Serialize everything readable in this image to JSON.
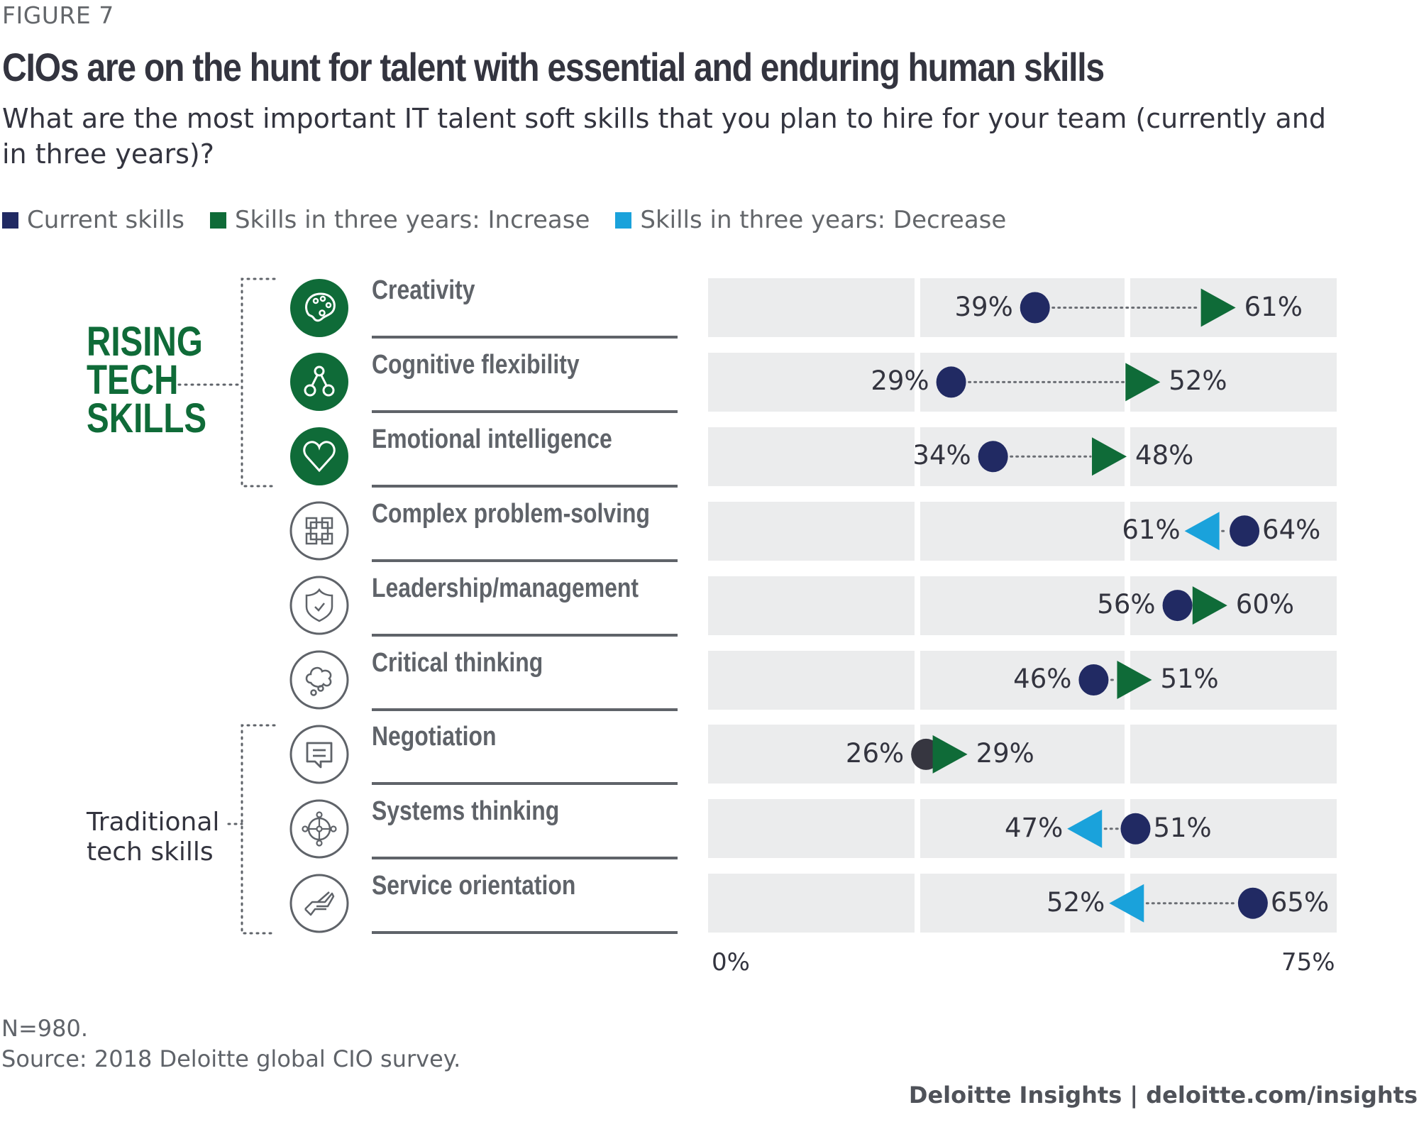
{
  "figure_label": "FIGURE 7",
  "title": "CIOs are on the hunt for talent with essential and enduring human skills",
  "subtitle": "What are the most important IT talent soft skills that you plan to hire for your team (currently and in three years)?",
  "legend": [
    {
      "label": "Current skills",
      "color": "#212a63"
    },
    {
      "label": "Skills in three years: Increase",
      "color": "#0f6b38"
    },
    {
      "label": "Skills in three years: Decrease",
      "color": "#1aa2db"
    }
  ],
  "groups": {
    "rising": "RISING\nTECH\nSKILLS",
    "traditional": "Traditional\ntech skills"
  },
  "colors": {
    "current": "#212a63",
    "increase": "#0f6b38",
    "decrease": "#1aa2db",
    "rising_icon_bg": "#0f6b38",
    "traditional_icon_stroke": "#5f6369",
    "negotiation_current": "#363640"
  },
  "chart_data": {
    "type": "dot-arrow",
    "title": "CIOs are on the hunt for talent with essential and enduring human skills",
    "xlabel": "",
    "ylabel": "",
    "xlim": [
      0,
      75
    ],
    "x_ticks": [
      "0%",
      "75%"
    ],
    "legend_position": "top-left",
    "categories": [
      "Creativity",
      "Cognitive flexibility",
      "Emotional intelligence",
      "Complex problem-solving",
      "Leadership/management",
      "Critical thinking",
      "Negotiation",
      "Systems thinking",
      "Service orientation"
    ],
    "groups": [
      "rising",
      "rising",
      "rising",
      "traditional",
      "traditional",
      "traditional",
      "traditional",
      "traditional",
      "traditional"
    ],
    "icons": [
      "palette-icon",
      "network-nodes-icon",
      "heart-icon",
      "puzzle-grid-icon",
      "shield-check-icon",
      "thought-cloud-icon",
      "speech-bubble-icon",
      "globe-nodes-icon",
      "helping-hand-icon"
    ],
    "series": [
      {
        "name": "Current skills",
        "values": [
          39,
          29,
          34,
          64,
          56,
          46,
          26,
          51,
          65
        ]
      },
      {
        "name": "Skills in three years",
        "values": [
          61,
          52,
          48,
          61,
          60,
          51,
          29,
          47,
          52
        ]
      }
    ],
    "direction": [
      "increase",
      "increase",
      "increase",
      "decrease",
      "increase",
      "increase",
      "increase",
      "decrease",
      "decrease"
    ],
    "value_labels": {
      "current": [
        "39%",
        "29%",
        "34%",
        "64%",
        "56%",
        "46%",
        "26%",
        "51%",
        "65%"
      ],
      "future": [
        "61%",
        "52%",
        "48%",
        "61%",
        "60%",
        "51%",
        "29%",
        "47%",
        "52%"
      ]
    }
  },
  "notes": {
    "n": "N=980.",
    "source": "Source: 2018 Deloitte global CIO survey."
  },
  "footer": "Deloitte Insights | deloitte.com/insights"
}
